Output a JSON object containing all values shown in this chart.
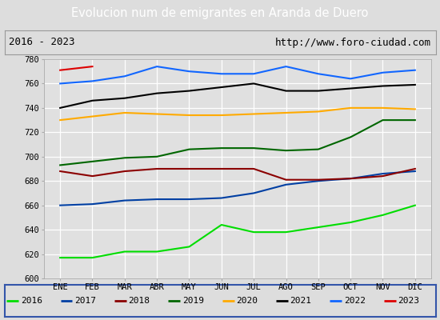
{
  "title": "Evolucion num de emigrantes en Aranda de Duero",
  "subtitle_left": "2016 - 2023",
  "subtitle_right": "http://www.foro-ciudad.com",
  "months": [
    "ENE",
    "FEB",
    "MAR",
    "ABR",
    "MAY",
    "JUN",
    "JUL",
    "AGO",
    "SEP",
    "OCT",
    "NOV",
    "DIC"
  ],
  "ylim": [
    600,
    780
  ],
  "yticks": [
    600,
    620,
    640,
    660,
    680,
    700,
    720,
    740,
    760,
    780
  ],
  "series": {
    "2016": {
      "color": "#00dd00",
      "values": [
        617,
        617,
        622,
        622,
        626,
        644,
        638,
        638,
        642,
        646,
        652,
        660
      ]
    },
    "2017": {
      "color": "#003fa3",
      "values": [
        660,
        661,
        664,
        665,
        665,
        666,
        670,
        677,
        680,
        682,
        686,
        688
      ]
    },
    "2018": {
      "color": "#8b0000",
      "values": [
        688,
        684,
        688,
        690,
        690,
        690,
        690,
        681,
        681,
        682,
        684,
        690
      ]
    },
    "2019": {
      "color": "#006600",
      "values": [
        693,
        696,
        699,
        700,
        706,
        707,
        707,
        705,
        706,
        716,
        730,
        730
      ]
    },
    "2020": {
      "color": "#ffaa00",
      "values": [
        730,
        733,
        736,
        735,
        734,
        734,
        735,
        736,
        737,
        740,
        740,
        739
      ]
    },
    "2021": {
      "color": "#000000",
      "values": [
        740,
        746,
        748,
        752,
        754,
        757,
        760,
        754,
        754,
        756,
        758,
        759
      ]
    },
    "2022": {
      "color": "#1166ff",
      "values": [
        760,
        762,
        766,
        774,
        770,
        768,
        768,
        774,
        768,
        764,
        769,
        771
      ]
    },
    "2023": {
      "color": "#dd0000",
      "values": [
        771,
        774,
        null,
        null,
        null,
        null,
        null,
        null,
        null,
        null,
        null,
        null
      ]
    }
  },
  "background_color": "#dddddd",
  "plot_bg_color": "#e0e0e0",
  "title_bg_color": "#5588cc",
  "title_color": "#ffffff",
  "grid_color": "#ffffff",
  "legend_border_color": "#3355aa",
  "subtitle_border_color": "#999999"
}
